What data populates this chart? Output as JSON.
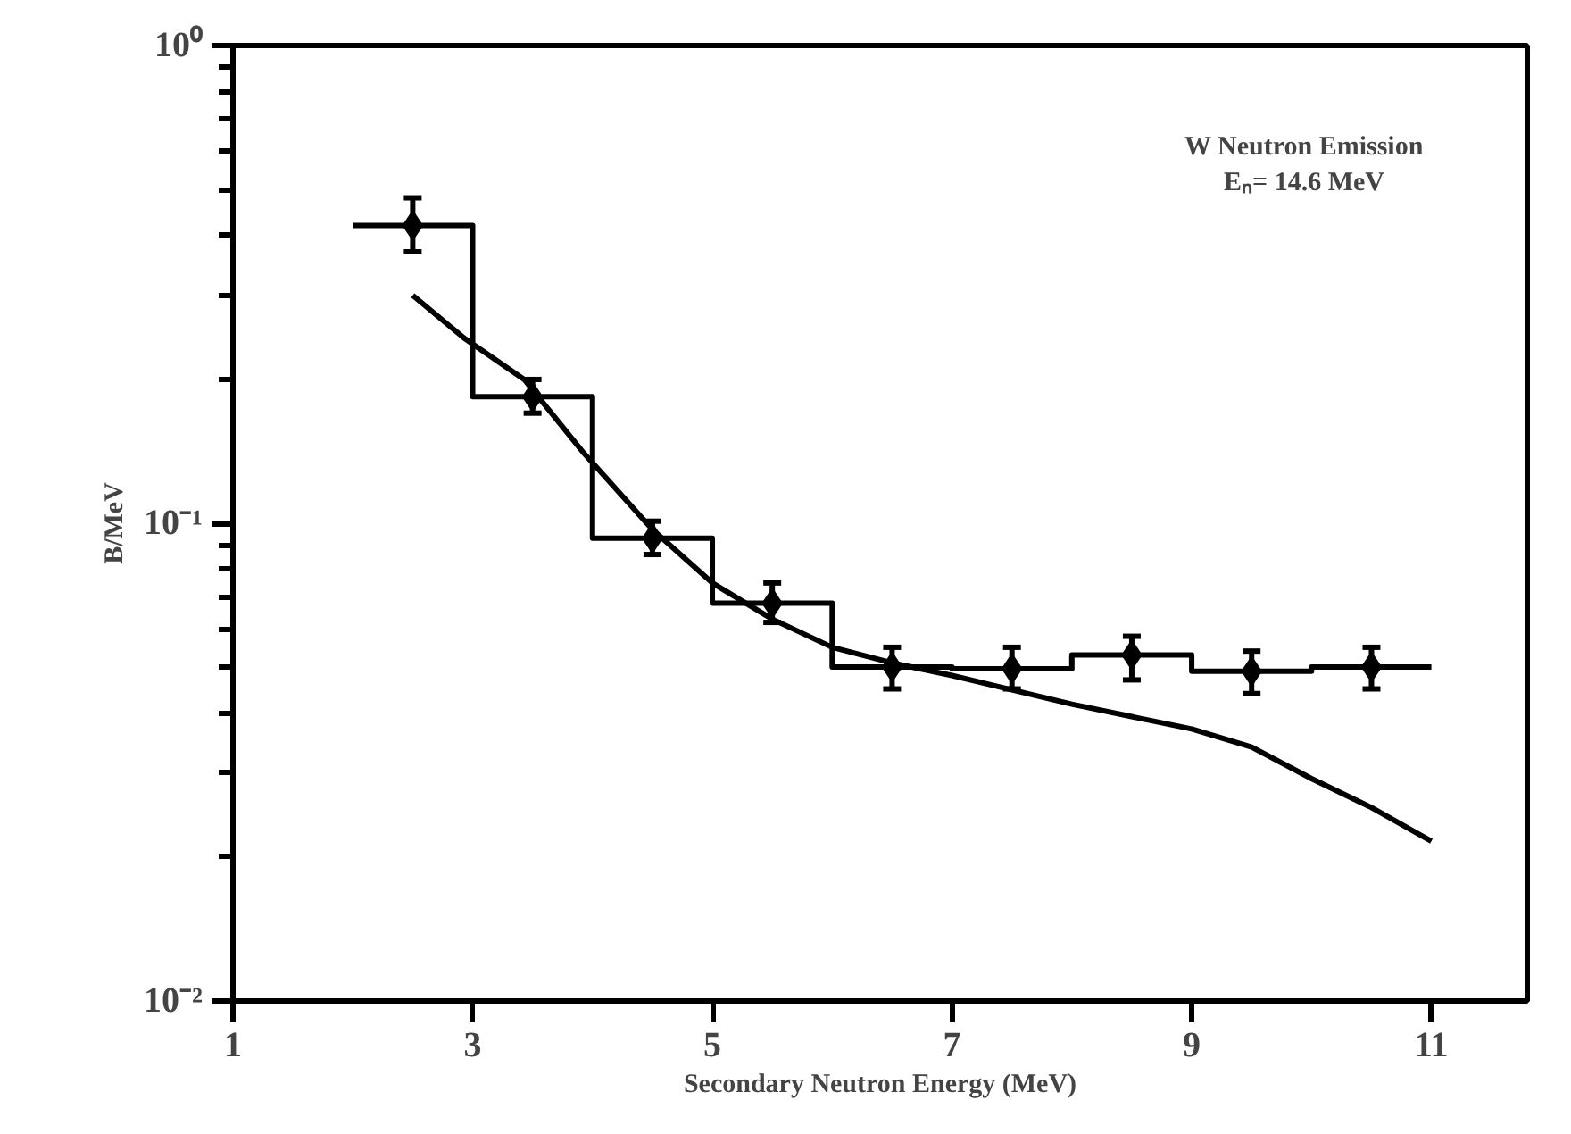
{
  "chart_data": {
    "type": "line",
    "xlabel": "Secondary Neutron Energy (MeV)",
    "ylabel": "B/MeV",
    "log": "y",
    "grid": false,
    "annotations": [
      "W Neutron Emission",
      "Eₙ= 14.6 MeV"
    ],
    "xlim": [
      1,
      11.8
    ],
    "xticks": [
      1,
      3,
      5,
      7,
      9,
      11
    ],
    "ylim": [
      0.01,
      1
    ],
    "yticks": [
      {
        "value": 1,
        "label": "10⁰"
      },
      {
        "value": 0.1,
        "label": "10⁻¹"
      },
      {
        "value": 0.01,
        "label": "10⁻²"
      },
      {
        "value": 0.02,
        "label": null
      },
      {
        "value": 0.03,
        "label": null
      },
      {
        "value": 0.04,
        "label": null
      },
      {
        "value": 0.05,
        "label": null
      },
      {
        "value": 0.06,
        "label": null
      },
      {
        "value": 0.07,
        "label": null
      },
      {
        "value": 0.08,
        "label": null
      },
      {
        "value": 0.09,
        "label": null
      },
      {
        "value": 0.2,
        "label": null
      },
      {
        "value": 0.3,
        "label": null
      },
      {
        "value": 0.4,
        "label": null
      },
      {
        "value": 0.5,
        "label": null
      },
      {
        "value": 0.6,
        "label": null
      },
      {
        "value": 0.7,
        "label": null
      },
      {
        "value": 0.8,
        "label": null
      },
      {
        "value": 0.9,
        "label": null
      }
    ],
    "series": [
      {
        "type": "step",
        "color": "#000000",
        "x": [
          2,
          3,
          4,
          5,
          6,
          7,
          8,
          9,
          10,
          11
        ],
        "values": [
          0.42,
          0.184,
          0.093,
          0.068,
          0.05,
          0.0496,
          0.053,
          0.049,
          0.05,
          0.05
        ]
      },
      {
        "type": "scatter",
        "color": "#000000",
        "marker": "diamond",
        "x": [
          2.5,
          3.5,
          4.5,
          5.5,
          6.5,
          7.5,
          8.5,
          9.5,
          10.5
        ],
        "values": [
          0.42,
          0.184,
          0.093,
          0.068,
          0.05,
          0.0496,
          0.053,
          0.049,
          0.05
        ],
        "errors": [
          [
            0.37,
            0.48
          ],
          [
            0.17,
            0.2
          ],
          [
            0.086,
            0.101
          ],
          [
            0.062,
            0.075
          ],
          [
            0.045,
            0.055
          ],
          [
            0.045,
            0.055
          ],
          [
            0.047,
            0.058
          ],
          [
            0.044,
            0.054
          ],
          [
            0.045,
            0.055
          ]
        ]
      },
      {
        "color": "#000000",
        "line_style": "solid",
        "x": [
          2.5,
          2.93,
          3.43,
          3.93,
          4.5,
          5,
          5.5,
          6,
          6.5,
          7,
          8,
          9,
          9.5,
          10,
          10.5,
          11
        ],
        "values": [
          0.3,
          0.244,
          0.2,
          0.14,
          0.097,
          0.075,
          0.063,
          0.055,
          0.051,
          0.048,
          0.0418,
          0.0371,
          0.034,
          0.0292,
          0.0254,
          0.0216
        ]
      }
    ]
  }
}
